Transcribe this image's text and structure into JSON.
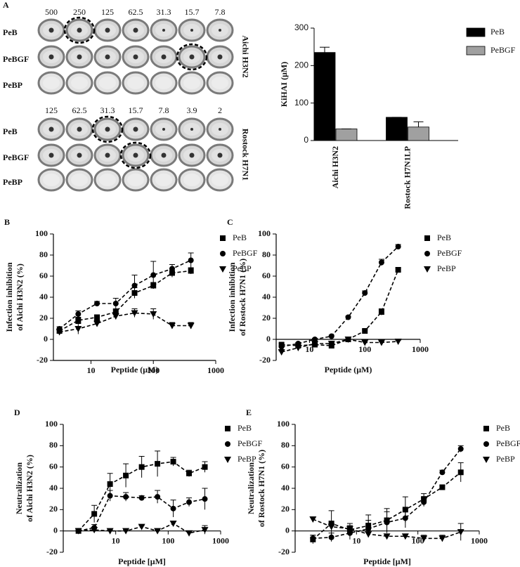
{
  "wells": [
    {
      "panel": "A",
      "concentrations": [
        500,
        250,
        125,
        62.5,
        31.3,
        15.7,
        7.8
      ],
      "rows": [
        "PeB",
        "PeBGF",
        "PeBP"
      ],
      "virus": "Aichi H3N2"
    },
    {
      "concentrations": [
        125,
        62.5,
        31.3,
        15.7,
        7.8,
        3.9,
        2
      ],
      "rows": [
        "PeB",
        "PeBGF",
        "PeBP"
      ],
      "virus": "Rostock H7N1"
    }
  ],
  "chart_data": [
    {
      "type": "bar",
      "ylabel": "KiHAI (μM)",
      "categories": [
        "Aichi H3N2",
        "Rostock H7N1LP"
      ],
      "series": [
        {
          "name": "PeB",
          "color": "#000000",
          "values": [
            235,
            62
          ],
          "errors": [
            14,
            0
          ]
        },
        {
          "name": "PeBGF",
          "color": "#a0a0a0",
          "values": [
            31,
            36
          ],
          "errors": [
            0,
            14
          ]
        }
      ],
      "ylim": [
        0,
        300
      ],
      "yticks": [
        0,
        100,
        200,
        300
      ],
      "legend": "right"
    },
    {
      "type": "line",
      "panel": "B",
      "xlabel": "Peptide (μM)",
      "ylabel": [
        "Infection inhibition",
        "of Aichi H3N2 (%)"
      ],
      "x": [
        3.125,
        6.25,
        12.5,
        25,
        50,
        100,
        200,
        400
      ],
      "log_x": true,
      "x_axis_at": -20,
      "series": [
        {
          "name": "PeB",
          "color": "#000000",
          "marker": "square",
          "values": [
            8,
            18,
            21,
            26,
            44,
            51,
            63,
            65
          ],
          "errors": [
            2,
            3,
            2,
            3,
            5,
            3,
            4,
            3
          ]
        },
        {
          "name": "PeBGF",
          "color": "#000000",
          "marker": "circle",
          "values": [
            10,
            24,
            34,
            34,
            51,
            61,
            67,
            75
          ],
          "errors": [
            2,
            3,
            2,
            5,
            10,
            13,
            4,
            7
          ]
        },
        {
          "name": "PeBP",
          "color": "#000000",
          "marker": "triangle",
          "values": [
            7,
            10,
            15,
            22,
            25,
            24,
            13,
            13
          ],
          "errors": [
            2,
            5,
            3,
            3,
            4,
            5,
            3,
            3
          ]
        }
      ],
      "xlim": [
        2.5,
        1000
      ],
      "xticks": [
        10,
        100,
        1000
      ],
      "ylim": [
        -20,
        100
      ],
      "yticks": [
        -20,
        0,
        20,
        40,
        60,
        80,
        100
      ],
      "legend": "top-right"
    },
    {
      "type": "line",
      "panel": "C",
      "xlabel": "Peptide (μM)",
      "ylabel": [
        "Infection inhibition",
        "of Rostock H7N1 (%)"
      ],
      "x": [
        3.125,
        6.25,
        12.5,
        25,
        50,
        100,
        200,
        400
      ],
      "log_x": true,
      "x_axis_at": 0,
      "series": [
        {
          "name": "PeB",
          "color": "#000000",
          "marker": "square",
          "values": [
            -5,
            -6,
            -5,
            -6,
            0,
            8,
            26,
            66
          ],
          "errors": [
            1,
            1,
            1,
            1,
            1,
            1,
            3,
            2
          ]
        },
        {
          "name": "PeBGF",
          "color": "#000000",
          "marker": "circle",
          "values": [
            -7,
            -4,
            0,
            3,
            21,
            44,
            73,
            88
          ],
          "errors": [
            1,
            1,
            1,
            1,
            1,
            2,
            3,
            2
          ]
        },
        {
          "name": "PeBP",
          "color": "#000000",
          "marker": "triangle",
          "values": [
            -12,
            -8,
            -4,
            -4,
            0,
            -3,
            -3,
            -2
          ],
          "errors": [
            1,
            1,
            1,
            1,
            1,
            1,
            1,
            1
          ]
        }
      ],
      "xlim": [
        2.5,
        1000
      ],
      "xticks": [
        10,
        100,
        1000
      ],
      "ylim": [
        -20,
        100
      ],
      "yticks": [
        -20,
        0,
        20,
        40,
        60,
        80,
        100
      ],
      "legend": "top-right"
    },
    {
      "type": "line",
      "panel": "D",
      "xlabel": "Peptide [μM]",
      "ylabel": [
        "Neutralization",
        "of Aichi H3N2 (%)"
      ],
      "x": [
        1.95,
        3.9,
        7.8,
        15.6,
        31.25,
        62.5,
        125,
        250,
        500
      ],
      "log_x": true,
      "x_axis_at": 0,
      "series": [
        {
          "name": "PeB",
          "color": "#000000",
          "marker": "square",
          "values": [
            0,
            16,
            44,
            52,
            60,
            63,
            65,
            54,
            60
          ],
          "errors": [
            1,
            8,
            10,
            11,
            10,
            12,
            4,
            3,
            5
          ]
        },
        {
          "name": "PeBGF",
          "color": "#000000",
          "marker": "circle",
          "values": [
            0,
            3,
            33,
            32,
            31,
            32,
            21,
            27,
            30
          ],
          "errors": [
            1,
            3,
            5,
            4,
            2,
            6,
            8,
            4,
            10
          ]
        },
        {
          "name": "PeBP",
          "color": "#000000",
          "marker": "triangle",
          "values": [
            0,
            1,
            0,
            0,
            4,
            0,
            7,
            -2,
            1
          ],
          "errors": [
            1,
            2,
            1,
            1,
            1,
            1,
            2,
            2,
            4
          ]
        }
      ],
      "xlim": [
        1,
        1000
      ],
      "xticks": [
        10,
        100,
        1000
      ],
      "ylim": [
        -20,
        100
      ],
      "yticks": [
        -20,
        0,
        20,
        40,
        60,
        80,
        100
      ],
      "legend": "top-right"
    },
    {
      "type": "line",
      "panel": "E",
      "xlabel": "Peptide [μM]",
      "ylabel": [
        "Neutralization",
        "of Rostock H7N1 (%)"
      ],
      "x": [
        1.95,
        3.9,
        7.8,
        15.6,
        31.25,
        62.5,
        125,
        250,
        500
      ],
      "log_x": true,
      "x_axis_at": 0,
      "series": [
        {
          "name": "PeB",
          "color": "#000000",
          "marker": "square",
          "values": [
            -8,
            7,
            1,
            5,
            10,
            20,
            30,
            41,
            55
          ],
          "errors": [
            4,
            12,
            6,
            10,
            11,
            12,
            5,
            2,
            9
          ]
        },
        {
          "name": "PeBGF",
          "color": "#000000",
          "marker": "circle",
          "values": [
            -7,
            -6,
            -2,
            2,
            8,
            12,
            27,
            55,
            77
          ],
          "errors": [
            3,
            4,
            6,
            8,
            10,
            9,
            4,
            2,
            3
          ]
        },
        {
          "name": "PeBP",
          "color": "#000000",
          "marker": "triangle",
          "values": [
            11,
            4,
            2,
            -3,
            -5,
            -5,
            -7,
            -7,
            -1
          ],
          "errors": [
            2,
            3,
            3,
            2,
            2,
            2,
            3,
            3,
            8
          ]
        }
      ],
      "xlim": [
        1,
        1000
      ],
      "xticks": [
        10,
        100,
        1000
      ],
      "ylim": [
        -20,
        100
      ],
      "yticks": [
        -20,
        0,
        20,
        40,
        60,
        80,
        100
      ],
      "legend": "top-right"
    }
  ]
}
